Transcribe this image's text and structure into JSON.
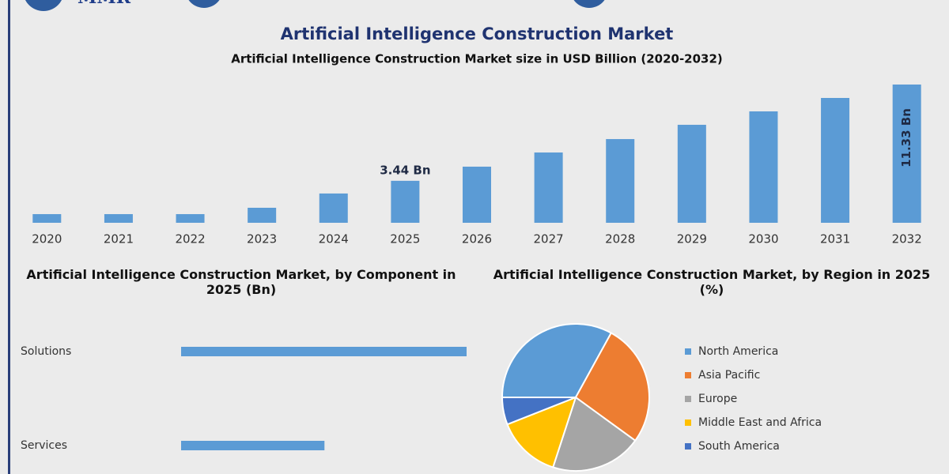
{
  "header": {
    "logo": "MMR",
    "title": "Artificial Intelligence Construction Market"
  },
  "chart_data": [
    {
      "type": "bar",
      "title": "Artificial Intelligence Construction Market size in USD Billion (2020-2032)",
      "categories": [
        "2020",
        "2021",
        "2022",
        "2023",
        "2024",
        "2025",
        "2026",
        "2027",
        "2028",
        "2029",
        "2030",
        "2031",
        "2032"
      ],
      "values": [
        0.71,
        0.71,
        0.71,
        1.23,
        2.4,
        3.44,
        4.6,
        5.76,
        6.86,
        8.03,
        9.13,
        10.23,
        11.33
      ],
      "value_labels": [
        null,
        null,
        null,
        null,
        null,
        "3.44 Bn",
        null,
        null,
        null,
        null,
        null,
        null,
        "11.33 Bn"
      ],
      "color": "#5b9bd5"
    },
    {
      "type": "bar",
      "orientation": "horizontal",
      "title": "Artificial Intelligence Construction Market, by Component in 2025 (Bn)",
      "categories": [
        "Solutions",
        "Services"
      ],
      "values": [
        2.29,
        1.15
      ],
      "color": "#5b9bd5"
    },
    {
      "type": "pie",
      "title": "Artificial Intelligence Construction Market, by Region in 2025 (%)",
      "categories": [
        "North America",
        "Asia Pacific",
        "Europe",
        "Middle East and Africa",
        "South America"
      ],
      "values": [
        33,
        27,
        20,
        14,
        6
      ],
      "colors": [
        "#5b9bd5",
        "#ed7d31",
        "#a5a5a5",
        "#ffc000",
        "#4472c4"
      ],
      "legend": "right"
    }
  ]
}
